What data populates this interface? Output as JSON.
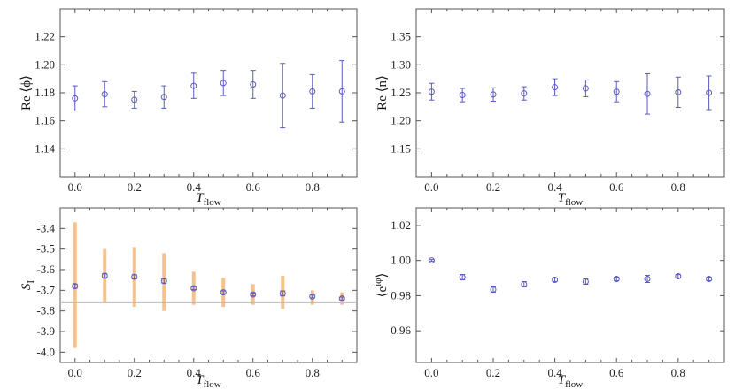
{
  "colors": {
    "marker": "#5a5abf",
    "band": "#f7c28a",
    "reference": "#bbbbbb",
    "frame": "#555555"
  },
  "chart_data": [
    {
      "type": "scatter",
      "id": "phi",
      "xlabel": "T",
      "xlabel_sub": "flow",
      "ylabel": "Re ⟨ϕ⟩",
      "xlim": [
        -0.05,
        0.95
      ],
      "ylim": [
        1.12,
        1.24
      ],
      "xticks": [
        0.0,
        0.2,
        0.4,
        0.6,
        0.8
      ],
      "xtick_labels": [
        "0.0",
        "0.2",
        "0.4",
        "0.6",
        "0.8"
      ],
      "yticks": [
        1.14,
        1.16,
        1.18,
        1.2,
        1.22
      ],
      "ytick_labels": [
        "1.14",
        "1.16",
        "1.18",
        "1.20",
        "1.22"
      ],
      "x": [
        0.0,
        0.1,
        0.2,
        0.3,
        0.4,
        0.5,
        0.6,
        0.7,
        0.8,
        0.9
      ],
      "y": [
        1.176,
        1.179,
        1.175,
        1.177,
        1.185,
        1.187,
        1.186,
        1.178,
        1.181,
        1.181
      ],
      "yerr": [
        0.009,
        0.009,
        0.006,
        0.008,
        0.009,
        0.009,
        0.01,
        0.023,
        0.012,
        0.022
      ]
    },
    {
      "type": "scatter",
      "id": "n",
      "xlabel": "T",
      "xlabel_sub": "flow",
      "ylabel": "Re ⟨n⟩",
      "xlim": [
        -0.05,
        0.95
      ],
      "ylim": [
        1.1,
        1.4
      ],
      "xticks": [
        0.0,
        0.2,
        0.4,
        0.6,
        0.8
      ],
      "xtick_labels": [
        "0.0",
        "0.2",
        "0.4",
        "0.6",
        "0.8"
      ],
      "yticks": [
        1.15,
        1.2,
        1.25,
        1.3,
        1.35
      ],
      "ytick_labels": [
        "1.15",
        "1.20",
        "1.25",
        "1.30",
        "1.35"
      ],
      "x": [
        0.0,
        0.1,
        0.2,
        0.3,
        0.4,
        0.5,
        0.6,
        0.7,
        0.8,
        0.9
      ],
      "y": [
        1.252,
        1.246,
        1.247,
        1.249,
        1.26,
        1.258,
        1.252,
        1.248,
        1.251,
        1.25
      ],
      "yerr": [
        0.015,
        0.012,
        0.012,
        0.012,
        0.015,
        0.015,
        0.018,
        0.036,
        0.027,
        0.03
      ]
    },
    {
      "type": "scatter",
      "id": "SI",
      "xlabel": "T",
      "xlabel_sub": "flow",
      "ylabel": "S",
      "ylabel_sub": "I",
      "xlim": [
        -0.05,
        0.95
      ],
      "ylim": [
        -4.05,
        -3.3
      ],
      "xticks": [
        0.0,
        0.2,
        0.4,
        0.6,
        0.8
      ],
      "xtick_labels": [
        "0.0",
        "0.2",
        "0.4",
        "0.6",
        "0.8"
      ],
      "yticks": [
        -4.0,
        -3.9,
        -3.8,
        -3.7,
        -3.6,
        -3.5,
        -3.4
      ],
      "ytick_labels": [
        "-4.0",
        "-3.9",
        "-3.8",
        "-3.7",
        "-3.6",
        "-3.5",
        "-3.4"
      ],
      "x": [
        0.0,
        0.1,
        0.2,
        0.3,
        0.4,
        0.5,
        0.6,
        0.7,
        0.8,
        0.9
      ],
      "y": [
        -3.68,
        -3.63,
        -3.635,
        -3.655,
        -3.69,
        -3.71,
        -3.72,
        -3.715,
        -3.73,
        -3.74
      ],
      "yerr": [
        0.01,
        0.01,
        0.01,
        0.01,
        0.007,
        0.007,
        0.007,
        0.012,
        0.007,
        0.007
      ],
      "band_low": [
        -3.98,
        -3.76,
        -3.78,
        -3.8,
        -3.77,
        -3.78,
        -3.77,
        -3.79,
        -3.77,
        -3.77
      ],
      "band_high": [
        -3.37,
        -3.5,
        -3.49,
        -3.52,
        -3.61,
        -3.64,
        -3.67,
        -3.63,
        -3.7,
        -3.71
      ],
      "reference_line": -3.76
    },
    {
      "type": "scatter",
      "id": "phase",
      "xlabel": "T",
      "xlabel_sub": "flow",
      "ylabel": "⟨e",
      "ylabel_sup": "iφ",
      "ylabel_close": "⟩",
      "xlim": [
        -0.05,
        0.95
      ],
      "ylim": [
        0.942,
        1.03
      ],
      "xticks": [
        0.0,
        0.2,
        0.4,
        0.6,
        0.8
      ],
      "xtick_labels": [
        "0.0",
        "0.2",
        "0.4",
        "0.6",
        "0.8"
      ],
      "yticks": [
        0.96,
        0.98,
        1.0,
        1.02
      ],
      "ytick_labels": [
        "0.96",
        "0.98",
        "1.00",
        "1.02"
      ],
      "x": [
        0.0,
        0.1,
        0.2,
        0.3,
        0.4,
        0.5,
        0.6,
        0.7,
        0.8,
        0.9
      ],
      "y": [
        1.0,
        0.9905,
        0.9835,
        0.9865,
        0.989,
        0.988,
        0.9895,
        0.9895,
        0.991,
        0.9895
      ],
      "yerr": [
        0.0005,
        0.0015,
        0.0015,
        0.0015,
        0.001,
        0.0015,
        0.001,
        0.002,
        0.001,
        0.001
      ]
    }
  ]
}
